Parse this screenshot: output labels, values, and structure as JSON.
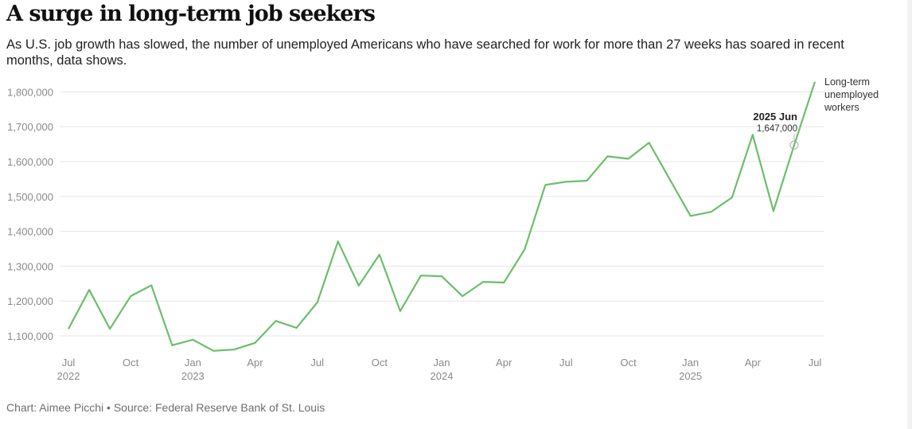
{
  "title": "A surge in long-term job seekers",
  "subtitle": "As U.S. job growth has slowed, the number of unemployed Americans who have searched for work for more than 27 weeks has soared in recent months, data shows.",
  "source": "Chart: Aimee Picchi • Source: Federal Reserve Bank of St. Louis",
  "chart_data": {
    "type": "line",
    "title": "A surge in long-term job seekers",
    "xlabel": "",
    "ylabel": "",
    "ylim": [
      1050000,
      1830000
    ],
    "grid": true,
    "line_color": "#6abf69",
    "y_ticks": [
      {
        "value": 1100000,
        "label": "1,100,000"
      },
      {
        "value": 1200000,
        "label": "1,200,000"
      },
      {
        "value": 1300000,
        "label": "1,300,000"
      },
      {
        "value": 1400000,
        "label": "1,400,000"
      },
      {
        "value": 1500000,
        "label": "1,500,000"
      },
      {
        "value": 1600000,
        "label": "1,600,000"
      },
      {
        "value": 1700000,
        "label": "1,700,000"
      },
      {
        "value": 1800000,
        "label": "1,800,000"
      }
    ],
    "x_ticks": [
      {
        "index": 0,
        "label": "Jul",
        "year": "2022"
      },
      {
        "index": 3,
        "label": "Oct",
        "year": ""
      },
      {
        "index": 6,
        "label": "Jan",
        "year": "2023"
      },
      {
        "index": 9,
        "label": "Apr",
        "year": ""
      },
      {
        "index": 12,
        "label": "Jul",
        "year": ""
      },
      {
        "index": 15,
        "label": "Oct",
        "year": ""
      },
      {
        "index": 18,
        "label": "Jan",
        "year": "2024"
      },
      {
        "index": 21,
        "label": "Apr",
        "year": ""
      },
      {
        "index": 24,
        "label": "Jul",
        "year": ""
      },
      {
        "index": 27,
        "label": "Oct",
        "year": ""
      },
      {
        "index": 30,
        "label": "Jan",
        "year": "2025"
      },
      {
        "index": 33,
        "label": "Apr",
        "year": ""
      },
      {
        "index": 36,
        "label": "Jul",
        "year": ""
      }
    ],
    "series": [
      {
        "name": "Long-term unemployed workers",
        "x": [
          "2022-07",
          "2022-08",
          "2022-09",
          "2022-10",
          "2022-11",
          "2022-12",
          "2023-01",
          "2023-02",
          "2023-03",
          "2023-04",
          "2023-05",
          "2023-06",
          "2023-07",
          "2023-08",
          "2023-09",
          "2023-10",
          "2023-11",
          "2023-12",
          "2024-01",
          "2024-02",
          "2024-03",
          "2024-04",
          "2024-05",
          "2024-06",
          "2024-07",
          "2024-08",
          "2024-09",
          "2024-10",
          "2024-11",
          "2024-12",
          "2025-01",
          "2025-02",
          "2025-03",
          "2025-04",
          "2025-05",
          "2025-06",
          "2025-07"
        ],
        "values": [
          1120000,
          1232000,
          1120000,
          1214000,
          1245000,
          1073000,
          1089000,
          1057000,
          1061000,
          1080000,
          1143000,
          1123000,
          1196000,
          1371000,
          1244000,
          1333000,
          1171000,
          1273000,
          1271000,
          1214000,
          1255000,
          1253000,
          1348000,
          1533000,
          1542000,
          1545000,
          1615000,
          1608000,
          1654000,
          1549000,
          1444000,
          1456000,
          1497000,
          1677000,
          1458000,
          1647000,
          1829000
        ]
      }
    ],
    "series_label": [
      "Long-term",
      "unemployed",
      "workers"
    ],
    "annotation": {
      "index": 35,
      "title": "2025 Jun",
      "value_label": "1,647,000"
    }
  }
}
